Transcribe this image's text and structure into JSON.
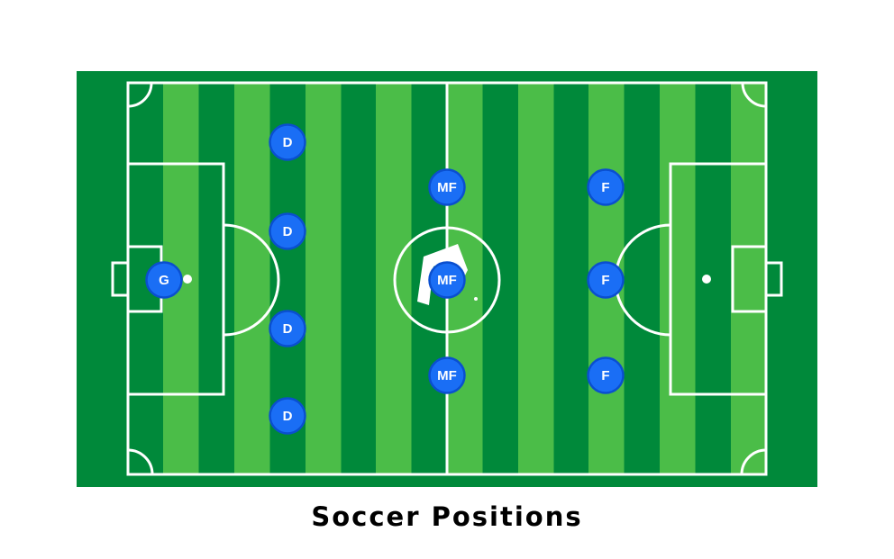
{
  "title": "Soccer Positions",
  "colors": {
    "field_dark": "#00893a",
    "field_light": "#4bbd48",
    "lines": "#ffffff",
    "player_fill": "#1a6ef5",
    "player_stroke": "#0a4fcf",
    "player_text": "#ffffff",
    "caption": "#000000"
  },
  "players": [
    {
      "role": "goalkeeper",
      "label": "G"
    },
    {
      "role": "defender",
      "label": "D"
    },
    {
      "role": "defender",
      "label": "D"
    },
    {
      "role": "defender",
      "label": "D"
    },
    {
      "role": "defender",
      "label": "D"
    },
    {
      "role": "midfielder",
      "label": "MF"
    },
    {
      "role": "midfielder",
      "label": "MF"
    },
    {
      "role": "midfielder",
      "label": "MF"
    },
    {
      "role": "forward",
      "label": "F"
    },
    {
      "role": "forward",
      "label": "F"
    },
    {
      "role": "forward",
      "label": "F"
    }
  ],
  "logo_icon": "brand-logo-icon"
}
